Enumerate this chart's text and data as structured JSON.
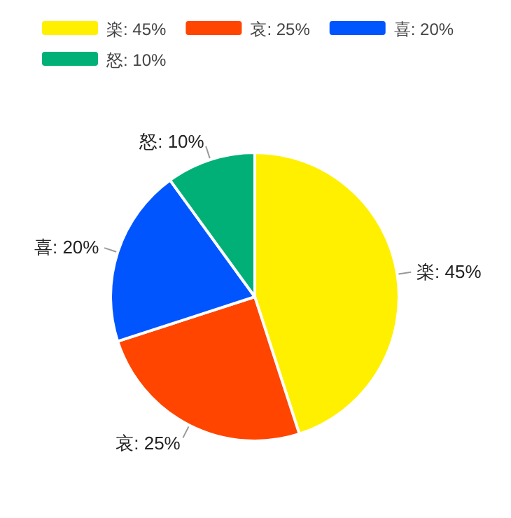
{
  "chart_data": {
    "type": "pie",
    "categories": [
      "楽: 45%",
      "哀: 25%",
      "喜: 20%",
      "怒: 10%"
    ],
    "values": [
      45,
      25,
      20,
      10
    ],
    "colors": [
      "#fff000",
      "#ff4500",
      "#0055ff",
      "#00b077"
    ],
    "legend": "top"
  }
}
